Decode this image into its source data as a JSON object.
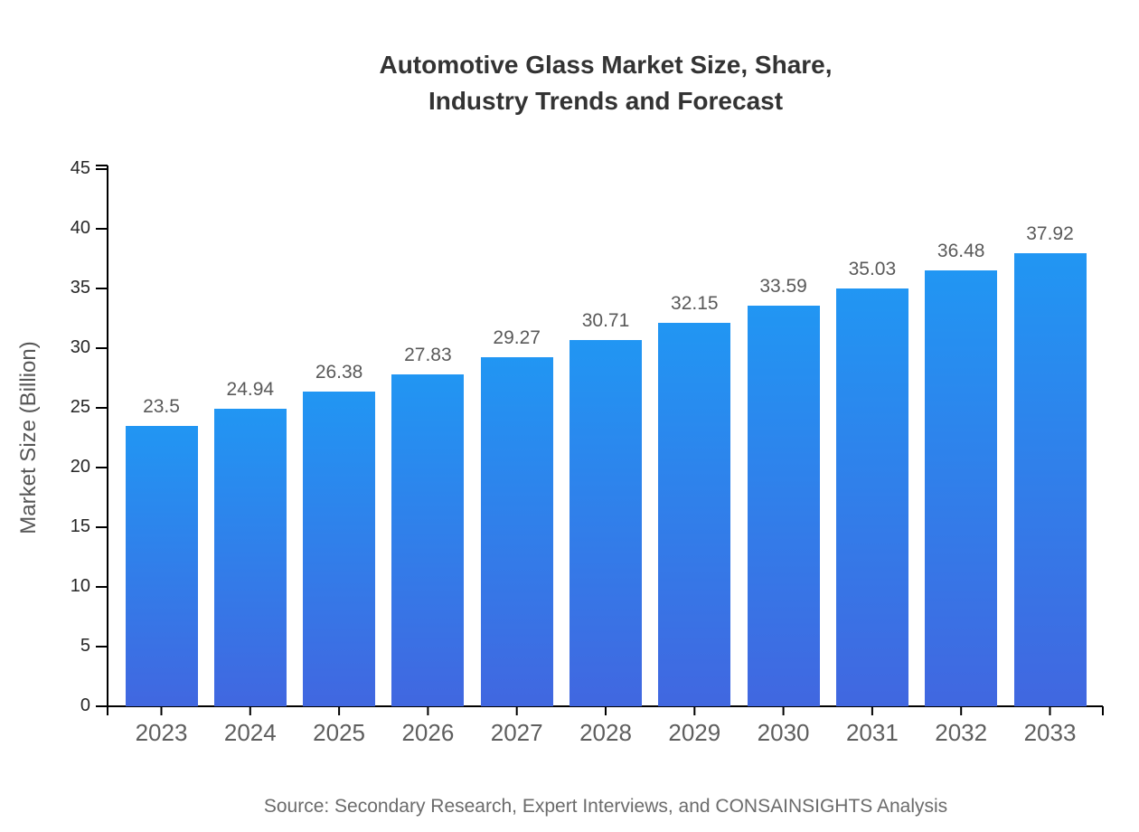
{
  "title": {
    "line1": "Automotive Glass Market Size, Share,",
    "line2": "Industry Trends and Forecast"
  },
  "source_text": "Source: Secondary Research, Expert Interviews, and CONSAINSIGHTS Analysis",
  "colors": {
    "bar_gradient_top": "#2196f3",
    "bar_gradient_bottom": "#4167e0",
    "axis_line": "#000000",
    "title_text": "#333333",
    "value_label_text": "#595959",
    "x_tick_text": "#5e5e5e",
    "y_tick_text": "#262626",
    "source_text": "#6b6b6b",
    "background": "#ffffff"
  },
  "chart_data": {
    "type": "bar",
    "title": "Automotive Glass Market Size, Share, Industry Trends and Forecast",
    "categories": [
      "2023",
      "2024",
      "2025",
      "2026",
      "2027",
      "2028",
      "2029",
      "2030",
      "2031",
      "2032",
      "2033"
    ],
    "values": [
      23.5,
      24.94,
      26.38,
      27.83,
      29.27,
      30.71,
      32.15,
      33.59,
      35.03,
      36.48,
      37.92
    ],
    "value_labels": [
      "23.5",
      "24.94",
      "26.38",
      "27.83",
      "29.27",
      "30.71",
      "32.15",
      "33.59",
      "35.03",
      "36.48",
      "37.92"
    ],
    "xlabel": "",
    "ylabel": "Market Size (Billion)",
    "ylim": [
      0,
      45
    ],
    "y_ticks": [
      0,
      5,
      10,
      15,
      20,
      25,
      30,
      35,
      40,
      45
    ],
    "grid": false,
    "legend": false
  }
}
